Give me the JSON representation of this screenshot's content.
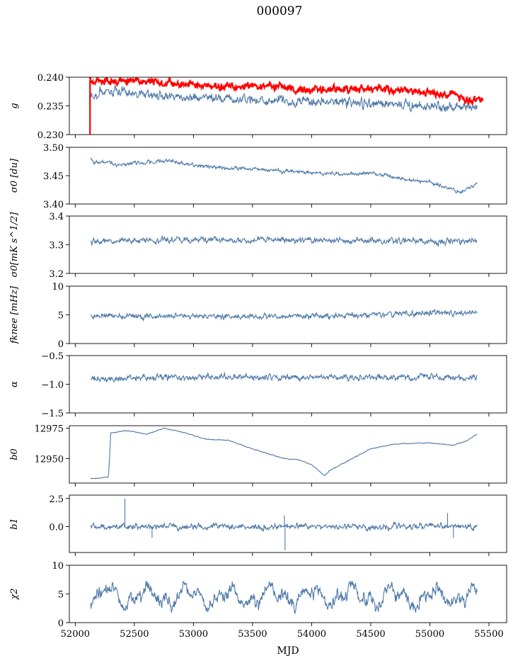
{
  "figure": {
    "title": "000097",
    "xlabel": "MJD",
    "line_color": "#4e79a7",
    "ref_color": "#ff0000"
  },
  "chart_data": [
    {
      "type": "line",
      "key": "g",
      "ylabel": "g",
      "xlim": [
        51950,
        55650
      ],
      "ylim": [
        0.23,
        0.24
      ],
      "yticks": [
        0.23,
        0.235,
        0.24
      ],
      "ytick_labels": [
        "0.230",
        "0.235",
        "0.240"
      ],
      "series": [
        {
          "color": "#4e79a7",
          "x": [
            52130,
            52250,
            52500,
            52750,
            53000,
            53250,
            53500,
            53750,
            54000,
            54250,
            54500,
            54750,
            55000,
            55200,
            55400
          ],
          "y": [
            0.2368,
            0.2375,
            0.2372,
            0.2368,
            0.2365,
            0.2362,
            0.2361,
            0.2359,
            0.2357,
            0.2356,
            0.2354,
            0.2353,
            0.235,
            0.2347,
            0.235
          ],
          "noise": 0.0008
        },
        {
          "color": "#ff0000",
          "x": [
            52120,
            52250,
            52500,
            52750,
            53000,
            53250,
            53500,
            53750,
            54000,
            54250,
            54500,
            54750,
            55000,
            55200,
            55300,
            55400,
            55450
          ],
          "y": [
            0.2395,
            0.2393,
            0.2392,
            0.239,
            0.2387,
            0.2385,
            0.2384,
            0.2383,
            0.2378,
            0.238,
            0.238,
            0.2378,
            0.2372,
            0.237,
            0.2358,
            0.2362,
            0.236
          ],
          "noise": 0.0006
        }
      ]
    },
    {
      "type": "line",
      "key": "sigma0_du",
      "ylabel": "σ0 [du]",
      "xlim": [
        51950,
        55650
      ],
      "ylim": [
        3.4,
        3.5
      ],
      "yticks": [
        3.4,
        3.45,
        3.5
      ],
      "ytick_labels": [
        "3.40",
        "3.45",
        "3.50"
      ],
      "series": [
        {
          "color": "#4e79a7",
          "x": [
            52130,
            52150,
            52400,
            52800,
            53000,
            53250,
            53500,
            53750,
            54000,
            54250,
            54500,
            54750,
            55000,
            55200,
            55250,
            55400
          ],
          "y": [
            3.483,
            3.475,
            3.47,
            3.476,
            3.468,
            3.464,
            3.462,
            3.458,
            3.455,
            3.453,
            3.455,
            3.445,
            3.438,
            3.425,
            3.42,
            3.436
          ],
          "noise": 0.003
        }
      ]
    },
    {
      "type": "line",
      "key": "sigma0_mk",
      "ylabel": "σ0[mK s^1/2]",
      "xlim": [
        51950,
        55650
      ],
      "ylim": [
        3.2,
        3.4
      ],
      "yticks": [
        3.2,
        3.3,
        3.4
      ],
      "ytick_labels": [
        "3.2",
        "3.3",
        "3.4"
      ],
      "series": [
        {
          "color": "#4e79a7",
          "x": [
            52130,
            52500,
            53000,
            53500,
            54000,
            54500,
            55000,
            55400
          ],
          "y": [
            3.31,
            3.315,
            3.318,
            3.315,
            3.316,
            3.315,
            3.31,
            3.316
          ],
          "noise": 0.01
        }
      ]
    },
    {
      "type": "line",
      "key": "fknee",
      "ylabel": "fknee [mHz]",
      "xlim": [
        51950,
        55650
      ],
      "ylim": [
        0,
        10
      ],
      "yticks": [
        0,
        5,
        10
      ],
      "ytick_labels": [
        "0",
        "5",
        "10"
      ],
      "series": [
        {
          "color": "#4e79a7",
          "x": [
            52130,
            52500,
            53000,
            53500,
            54000,
            54500,
            55000,
            55400
          ],
          "y": [
            4.8,
            4.7,
            4.8,
            4.7,
            4.8,
            5.1,
            5.3,
            5.4
          ],
          "noise": 0.45
        }
      ]
    },
    {
      "type": "line",
      "key": "alpha",
      "ylabel": "α",
      "xlim": [
        51950,
        55650
      ],
      "ylim": [
        -1.5,
        -0.5
      ],
      "yticks": [
        -1.5,
        -1.0,
        -0.5
      ],
      "ytick_labels": [
        "−1.5",
        "−1.0",
        "−0.5"
      ],
      "series": [
        {
          "color": "#4e79a7",
          "x": [
            52130,
            52500,
            53000,
            53500,
            54000,
            54500,
            55000,
            55400
          ],
          "y": [
            -0.9,
            -0.89,
            -0.88,
            -0.88,
            -0.88,
            -0.88,
            -0.88,
            -0.88
          ],
          "noise": 0.05
        }
      ]
    },
    {
      "type": "line",
      "key": "b0",
      "ylabel": "b0",
      "xlim": [
        51950,
        55650
      ],
      "ylim": [
        12930,
        12977
      ],
      "yticks": [
        12950,
        12975
      ],
      "ytick_labels": [
        "12950",
        "12975"
      ],
      "series": [
        {
          "color": "#4e79a7",
          "x": [
            52130,
            52200,
            52280,
            52290,
            52300,
            52420,
            52500,
            52600,
            52750,
            52900,
            53100,
            53300,
            53500,
            53700,
            53780,
            53900,
            54000,
            54110,
            54150,
            54300,
            54500,
            54700,
            55000,
            55200,
            55300,
            55400
          ],
          "y": [
            12934,
            12934,
            12935,
            12950,
            12971,
            12973,
            12972,
            12970,
            12975,
            12972,
            12966,
            12965,
            12958,
            12952,
            12950,
            12949,
            12945,
            12936,
            12940,
            12948,
            12958,
            12962,
            12963,
            12961,
            12964,
            12970
          ],
          "noise": 0.3
        }
      ]
    },
    {
      "type": "line",
      "key": "b1",
      "ylabel": "b1",
      "xlim": [
        51950,
        55650
      ],
      "ylim": [
        -2.3,
        2.8
      ],
      "yticks": [
        0.0,
        2.5
      ],
      "ytick_labels": [
        "0.0",
        "2.5"
      ],
      "series": [
        {
          "color": "#4e79a7",
          "x": [
            52130,
            52500,
            53000,
            53500,
            54000,
            54500,
            55000,
            55400
          ],
          "y": [
            0,
            0,
            0,
            0,
            0,
            0,
            0,
            0
          ],
          "noise": 0.25
        }
      ],
      "spikes": [
        {
          "x": 52420,
          "y": 2.5
        },
        {
          "x": 53775,
          "y": -2.1
        },
        {
          "x": 53770,
          "y": 1.0
        },
        {
          "x": 52650,
          "y": -1.0
        },
        {
          "x": 55150,
          "y": 1.2
        },
        {
          "x": 55200,
          "y": -1.0
        }
      ]
    },
    {
      "type": "line",
      "key": "chi2",
      "ylabel": "χ2",
      "xlim": [
        51950,
        55650
      ],
      "ylim": [
        0,
        10
      ],
      "yticks": [
        0,
        5,
        10
      ],
      "ytick_labels": [
        "0",
        "5",
        "10"
      ],
      "xticks": [
        52000,
        52500,
        53000,
        53500,
        54000,
        54500,
        55000,
        55500
      ],
      "xtick_labels": [
        "52000",
        "52500",
        "53000",
        "53500",
        "54000",
        "54500",
        "55000",
        "55500"
      ],
      "series": [
        {
          "color": "#4e79a7",
          "x": [
            52130,
            52500,
            53000,
            53500,
            54000,
            54500,
            55000,
            55400
          ],
          "y": [
            4.5,
            4.6,
            4.5,
            4.4,
            4.6,
            4.5,
            4.4,
            4.5
          ],
          "noise": 1.1,
          "wave": 1.2
        }
      ]
    }
  ]
}
